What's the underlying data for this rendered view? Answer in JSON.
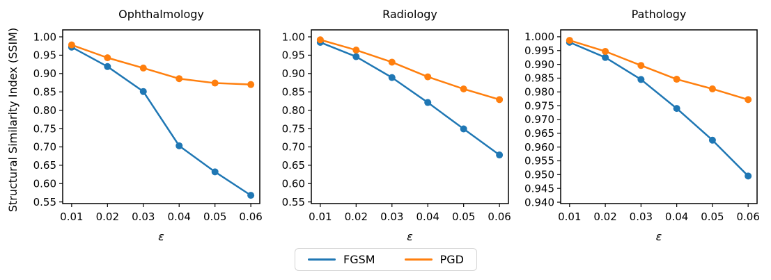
{
  "figure": {
    "ylabel": "Structural Similarity Index (SSIM)",
    "background": "#ffffff"
  },
  "legend": {
    "entries": [
      {
        "label": "FGSM",
        "color": "#1f77b4"
      },
      {
        "label": "PGD",
        "color": "#ff7f0e"
      }
    ]
  },
  "chart_data": [
    {
      "type": "line",
      "title": "Ophthalmology",
      "xlabel": "ε",
      "grid": false,
      "x": [
        0.01,
        0.02,
        0.03,
        0.04,
        0.05,
        0.06
      ],
      "xticks": [
        0.01,
        0.02,
        0.03,
        0.04,
        0.05,
        0.06
      ],
      "xtick_labels": [
        "0.01",
        "0.02",
        "0.03",
        "0.04",
        "0.05",
        "0.06"
      ],
      "xlim": [
        0.0075,
        0.0625
      ],
      "ylim": [
        0.5455,
        1.019
      ],
      "yticks": [
        0.55,
        0.6,
        0.65,
        0.7,
        0.75,
        0.8,
        0.85,
        0.9,
        0.95,
        1.0
      ],
      "ytick_labels": [
        "0.55",
        "0.60",
        "0.65",
        "0.70",
        "0.75",
        "0.80",
        "0.85",
        "0.90",
        "0.95",
        "1.00"
      ],
      "series": [
        {
          "name": "FGSM",
          "color": "#1f77b4",
          "values": [
            0.972,
            0.919,
            0.851,
            0.703,
            0.632,
            0.568
          ]
        },
        {
          "name": "PGD",
          "color": "#ff7f0e",
          "values": [
            0.978,
            0.943,
            0.915,
            0.886,
            0.874,
            0.87
          ]
        }
      ]
    },
    {
      "type": "line",
      "title": "Radiology",
      "xlabel": "ε",
      "grid": false,
      "x": [
        0.01,
        0.02,
        0.03,
        0.04,
        0.05,
        0.06
      ],
      "xticks": [
        0.01,
        0.02,
        0.03,
        0.04,
        0.05,
        0.06
      ],
      "xtick_labels": [
        "0.01",
        "0.02",
        "0.03",
        "0.04",
        "0.05",
        "0.06"
      ],
      "xlim": [
        0.0075,
        0.0625
      ],
      "ylim": [
        0.5455,
        1.019
      ],
      "yticks": [
        0.55,
        0.6,
        0.65,
        0.7,
        0.75,
        0.8,
        0.85,
        0.9,
        0.95,
        1.0
      ],
      "ytick_labels": [
        "0.55",
        "0.60",
        "0.65",
        "0.70",
        "0.75",
        "0.80",
        "0.85",
        "0.90",
        "0.95",
        "1.00"
      ],
      "series": [
        {
          "name": "FGSM",
          "color": "#1f77b4",
          "values": [
            0.985,
            0.946,
            0.889,
            0.821,
            0.749,
            0.678
          ]
        },
        {
          "name": "PGD",
          "color": "#ff7f0e",
          "values": [
            0.992,
            0.964,
            0.931,
            0.891,
            0.858,
            0.829
          ]
        }
      ]
    },
    {
      "type": "line",
      "title": "Pathology",
      "xlabel": "ε",
      "grid": false,
      "x": [
        0.01,
        0.02,
        0.03,
        0.04,
        0.05,
        0.06
      ],
      "xticks": [
        0.01,
        0.02,
        0.03,
        0.04,
        0.05,
        0.06
      ],
      "xtick_labels": [
        "0.01",
        "0.02",
        "0.03",
        "0.04",
        "0.05",
        "0.06"
      ],
      "xlim": [
        0.0075,
        0.0625
      ],
      "ylim": [
        0.9395,
        1.0025
      ],
      "yticks": [
        0.94,
        0.945,
        0.95,
        0.955,
        0.96,
        0.965,
        0.97,
        0.975,
        0.98,
        0.985,
        0.99,
        0.995,
        1.0
      ],
      "ytick_labels": [
        "0.940",
        "0.945",
        "0.950",
        "0.955",
        "0.960",
        "0.965",
        "0.970",
        "0.975",
        "0.980",
        "0.985",
        "0.990",
        "0.995",
        "1.000"
      ],
      "series": [
        {
          "name": "FGSM",
          "color": "#1f77b4",
          "values": [
            0.998,
            0.9925,
            0.9845,
            0.974,
            0.9625,
            0.9495
          ]
        },
        {
          "name": "PGD",
          "color": "#ff7f0e",
          "values": [
            0.9987,
            0.9947,
            0.9896,
            0.9846,
            0.9811,
            0.9772
          ]
        }
      ]
    }
  ]
}
